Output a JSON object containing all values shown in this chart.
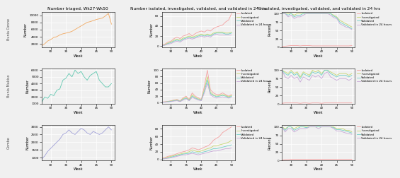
{
  "title_col1": "Number triaged, Wk27-Wk50",
  "title_col2": "Number isolated, investigated, validated, and validated in 24 hrs",
  "title_col3": "% isolated, investigated, validated, and validated in 24 hrs",
  "row_labels": [
    "Bunia Ozone",
    "Bunia Makiso",
    "Gombe"
  ],
  "xlabel": "Week",
  "ylabel_col1": "Number",
  "ylabel_col2": "Number",
  "ylabel_col3": "Percent",
  "weeks": [
    27,
    28,
    29,
    30,
    31,
    32,
    33,
    34,
    35,
    36,
    37,
    38,
    39,
    40,
    41,
    42,
    43,
    44,
    45,
    46,
    47,
    48,
    49,
    50
  ],
  "triage_bunia_ozone": [
    1500,
    2000,
    2800,
    3200,
    3800,
    4000,
    4500,
    4800,
    5000,
    5200,
    5500,
    6000,
    6500,
    7000,
    7500,
    8000,
    8200,
    8500,
    8800,
    9000,
    9200,
    9800,
    10500,
    7500
  ],
  "triage_bunia_makiso": [
    1200,
    2000,
    1800,
    2400,
    2200,
    3000,
    3200,
    4500,
    4800,
    5500,
    5000,
    6000,
    5500,
    5800,
    5000,
    4500,
    5200,
    5500,
    5800,
    4500,
    4000,
    3500,
    3500,
    4000
  ],
  "triage_gombe": [
    900,
    1100,
    1400,
    1600,
    1800,
    2000,
    2200,
    2500,
    2600,
    2800,
    2600,
    2500,
    2700,
    2900,
    2800,
    2600,
    2500,
    2700,
    2600,
    2500,
    2600,
    2800,
    3000,
    2800
  ],
  "isolated_bunia_ozone": [
    2,
    4,
    8,
    10,
    15,
    18,
    15,
    20,
    22,
    25,
    20,
    25,
    28,
    30,
    28,
    32,
    30,
    35,
    38,
    40,
    42,
    48,
    52,
    65
  ],
  "investigated_bunia_ozone": [
    1,
    3,
    6,
    8,
    12,
    14,
    12,
    16,
    18,
    20,
    18,
    20,
    22,
    24,
    22,
    24,
    22,
    26,
    28,
    28,
    28,
    26,
    26,
    28
  ],
  "validated_bunia_ozone": [
    1,
    2,
    5,
    7,
    10,
    12,
    10,
    14,
    16,
    18,
    16,
    18,
    20,
    22,
    20,
    22,
    20,
    24,
    26,
    26,
    26,
    24,
    24,
    26
  ],
  "validated24_bunia_ozone": [
    1,
    2,
    4,
    5,
    8,
    10,
    8,
    12,
    14,
    16,
    14,
    16,
    18,
    20,
    18,
    20,
    18,
    22,
    24,
    22,
    22,
    22,
    22,
    22
  ],
  "isolated_bunia_makiso": [
    2,
    3,
    4,
    6,
    8,
    10,
    5,
    15,
    20,
    10,
    30,
    20,
    15,
    10,
    50,
    100,
    40,
    30,
    25,
    25,
    30,
    25,
    20,
    25
  ],
  "investigated_bunia_makiso": [
    1,
    2,
    3,
    5,
    7,
    8,
    4,
    12,
    16,
    8,
    24,
    16,
    12,
    8,
    40,
    80,
    32,
    24,
    20,
    22,
    25,
    22,
    18,
    22
  ],
  "validated_bunia_makiso": [
    1,
    2,
    3,
    4,
    6,
    7,
    4,
    10,
    14,
    7,
    20,
    14,
    10,
    7,
    35,
    70,
    28,
    22,
    18,
    20,
    22,
    20,
    16,
    20
  ],
  "validated24_bunia_makiso": [
    1,
    1,
    2,
    3,
    5,
    6,
    3,
    8,
    12,
    6,
    16,
    12,
    8,
    6,
    30,
    60,
    24,
    18,
    14,
    16,
    18,
    16,
    14,
    16
  ],
  "isolated_gombe": [
    3,
    5,
    8,
    10,
    12,
    15,
    18,
    20,
    22,
    25,
    30,
    28,
    25,
    28,
    32,
    35,
    40,
    50,
    55,
    60,
    70,
    75,
    80,
    85
  ],
  "investigated_gombe": [
    2,
    3,
    6,
    8,
    10,
    12,
    14,
    16,
    18,
    20,
    25,
    22,
    20,
    22,
    25,
    28,
    30,
    35,
    35,
    38,
    40,
    42,
    45,
    50
  ],
  "validated_gombe": [
    1,
    2,
    4,
    6,
    8,
    10,
    12,
    14,
    15,
    16,
    20,
    18,
    16,
    18,
    20,
    22,
    25,
    28,
    28,
    30,
    32,
    34,
    36,
    38
  ],
  "validated24_gombe": [
    1,
    2,
    3,
    4,
    6,
    8,
    10,
    12,
    12,
    14,
    16,
    14,
    12,
    14,
    16,
    18,
    20,
    22,
    22,
    24,
    26,
    28,
    28,
    30
  ],
  "pct_isolated_bunia_ozone": [
    2,
    3,
    4,
    5,
    5,
    5,
    4,
    5,
    5,
    5,
    4,
    4,
    4,
    4,
    4,
    4,
    4,
    4,
    4,
    4,
    4,
    4,
    4,
    5
  ],
  "pct_investigated_bunia_ozone": [
    100,
    100,
    100,
    100,
    95,
    100,
    100,
    100,
    100,
    100,
    100,
    100,
    100,
    100,
    100,
    100,
    100,
    95,
    90,
    80,
    75,
    70,
    65,
    60
  ],
  "pct_validated_bunia_ozone": [
    100,
    100,
    95,
    100,
    90,
    95,
    95,
    100,
    100,
    100,
    100,
    100,
    100,
    100,
    100,
    100,
    100,
    92,
    88,
    75,
    70,
    65,
    60,
    55
  ],
  "pct_validated24_bunia_ozone": [
    100,
    100,
    90,
    95,
    85,
    90,
    90,
    95,
    100,
    100,
    100,
    100,
    100,
    100,
    100,
    100,
    95,
    88,
    85,
    70,
    65,
    60,
    58,
    52
  ],
  "pct_isolated_bunia_makiso": [
    2,
    3,
    3,
    3,
    3,
    3,
    2,
    3,
    3,
    2,
    3,
    3,
    3,
    2,
    3,
    3,
    3,
    3,
    3,
    3,
    3,
    3,
    3,
    3
  ],
  "pct_investigated_bunia_makiso": [
    100,
    95,
    90,
    100,
    90,
    95,
    80,
    95,
    90,
    85,
    100,
    95,
    100,
    90,
    100,
    100,
    95,
    90,
    85,
    90,
    90,
    90,
    85,
    90
  ],
  "pct_validated_bunia_makiso": [
    100,
    90,
    85,
    95,
    85,
    90,
    75,
    90,
    85,
    80,
    95,
    90,
    95,
    85,
    100,
    100,
    90,
    85,
    80,
    85,
    85,
    85,
    80,
    85
  ],
  "pct_validated24_bunia_makiso": [
    100,
    80,
    75,
    85,
    75,
    80,
    65,
    80,
    75,
    70,
    85,
    80,
    85,
    75,
    90,
    95,
    80,
    75,
    70,
    75,
    75,
    75,
    70,
    75
  ],
  "pct_isolated_gombe": [
    2,
    3,
    3,
    4,
    4,
    4,
    4,
    4,
    4,
    4,
    4,
    4,
    4,
    4,
    4,
    4,
    4,
    4,
    4,
    4,
    4,
    4,
    4,
    4
  ],
  "pct_investigated_gombe": [
    100,
    95,
    100,
    100,
    95,
    100,
    100,
    100,
    100,
    100,
    100,
    100,
    100,
    100,
    100,
    100,
    100,
    100,
    95,
    95,
    95,
    90,
    90,
    85
  ],
  "pct_validated_gombe": [
    100,
    90,
    100,
    100,
    90,
    95,
    100,
    100,
    98,
    100,
    100,
    100,
    100,
    100,
    100,
    100,
    100,
    98,
    92,
    92,
    90,
    88,
    85,
    82
  ],
  "pct_validated24_gombe": [
    100,
    85,
    95,
    95,
    85,
    90,
    95,
    95,
    95,
    100,
    100,
    100,
    95,
    100,
    100,
    100,
    100,
    95,
    88,
    88,
    85,
    82,
    80,
    78
  ],
  "color_isolated": "#f4a0a0",
  "color_investigated": "#c8d870",
  "color_validated": "#70d0c8",
  "color_validated24": "#c8a8d8",
  "color_triage_ozone": "#f0a860",
  "color_triage_makiso": "#60c8b0",
  "color_triage_gombe": "#a0a0d8",
  "legend_labels": [
    "Isolated",
    "Investigated",
    "Validated",
    "Validated in 24 hours"
  ],
  "bg_color": "#f0f0f0",
  "grid_color": "#ffffff"
}
